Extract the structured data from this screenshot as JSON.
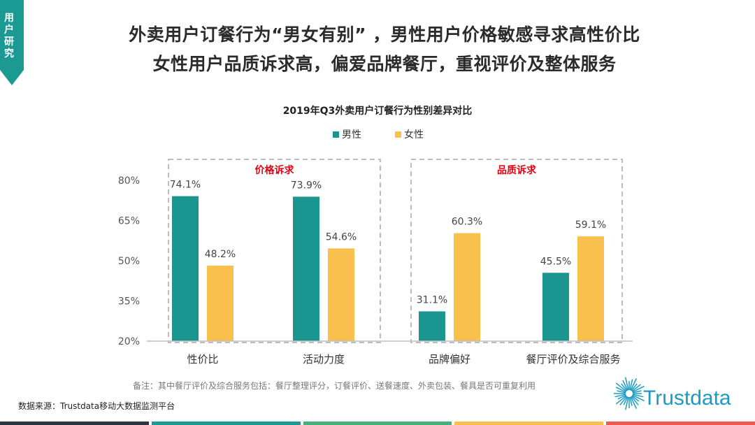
{
  "corner_tag": {
    "text": "用户研究",
    "color": "#1b9a94"
  },
  "headline": {
    "line1": "外卖用户订餐行为“男女有别” ，男性用户价格敏感寻求高性价比",
    "line2": "女性用户品质诉求高，偏爱品牌餐厅，重视评价及整体服务"
  },
  "chart_data": {
    "type": "bar",
    "title": "2019年Q3外卖用户订餐行为性别差异对比",
    "categories": [
      "性价比",
      "活动力度",
      "品牌偏好",
      "餐厅评价及综合服务"
    ],
    "series": [
      {
        "name": "男性",
        "values": [
          74.1,
          73.9,
          31.1,
          45.5
        ],
        "labels": [
          "74.1%",
          "73.9%",
          "31.1%",
          "45.5%"
        ],
        "color": "#1b9590"
      },
      {
        "name": "女性",
        "values": [
          48.2,
          54.6,
          60.3,
          59.1
        ],
        "labels": [
          "48.2%",
          "54.6%",
          "60.3%",
          "59.1%"
        ],
        "color": "#f9c04e"
      }
    ],
    "ylim": [
      20,
      80
    ],
    "yticks": [
      20,
      35,
      50,
      65,
      80
    ],
    "ytick_labels": [
      "20%",
      "35%",
      "50%",
      "65%",
      "80%"
    ],
    "legend": "top-center",
    "grid": false,
    "groups": [
      {
        "label": "价格诉求",
        "categories": [
          0,
          1
        ]
      },
      {
        "label": "品质诉求",
        "categories": [
          2,
          3
        ]
      }
    ],
    "group_label_color": "#e60012"
  },
  "footnote": "备注：其中餐厅评价及综合服务包括：餐厅整理评分，订餐评价、送餐速度、外卖包装、餐具是否可重复利用",
  "source": "数据来源：Trustdata移动大数据监测平台",
  "logo": {
    "text": "Trustdata",
    "color": "#1b9bc4"
  },
  "bottom_bar_colors": [
    "#2a3640",
    "#1b9a94",
    "#46b07a",
    "#f9c04e",
    "#ef5a50"
  ]
}
